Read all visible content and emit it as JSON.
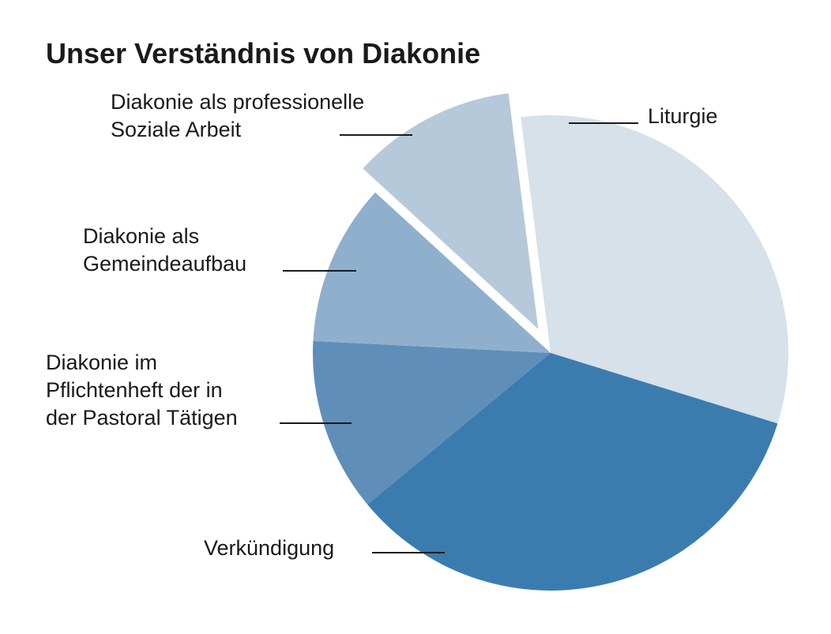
{
  "chart_data": {
    "type": "pie",
    "title": "Unser Verständnis von Diakonie",
    "categories": [
      "Liturgie",
      "Verkündigung",
      "Diakonie im Pflichtenheft der in der Pastoral Tätigen",
      "Diakonie als Gemeindeaufbau",
      "Diakonie als professionelle Soziale Arbeit"
    ],
    "values": [
      31.8,
      34.2,
      11.8,
      11.0,
      11.2
    ],
    "unit": "%",
    "exploded_slice": "Diakonie als professionelle Soziale Arbeit",
    "label_lines": [
      [
        "Liturgie"
      ],
      [
        "Verkündigung"
      ],
      [
        "Diakonie im",
        "Pflichtenheft der in",
        "der Pastoral Tätigen"
      ],
      [
        "Diakonie als",
        "Gemeindeaufbau"
      ],
      [
        "Diakonie als professionelle",
        "Soziale Arbeit"
      ]
    ],
    "colors": [
      "#d6e1ea",
      "#3b7caf",
      "#5f8fb9",
      "#8fb0cc",
      "#b5c9da"
    ],
    "legend": "none",
    "grid": false
  }
}
